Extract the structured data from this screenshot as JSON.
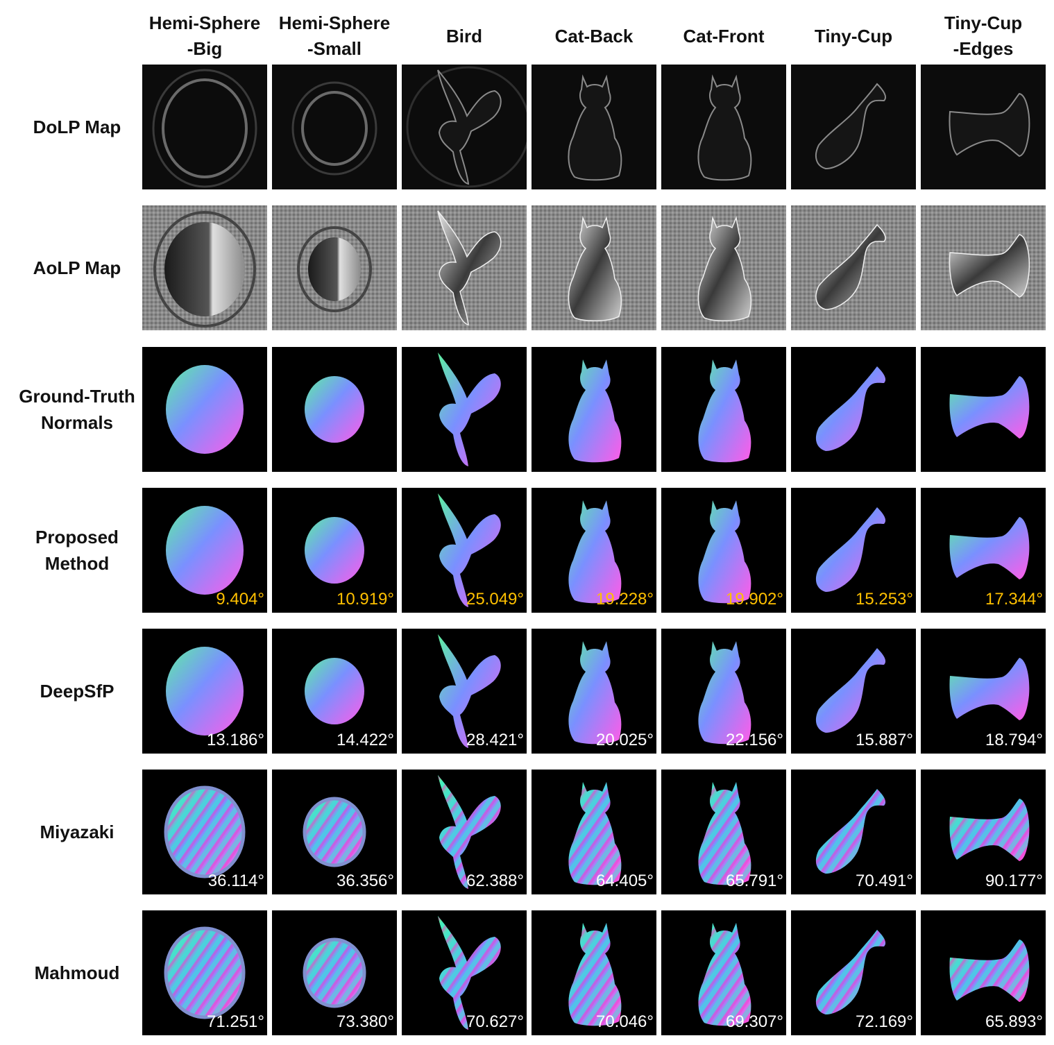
{
  "colors": {
    "highlight_error": "#FFC000",
    "normal_error": "#FFFFFF",
    "cell_background": "#000000"
  },
  "columns": [
    {
      "label": "Hemi-Sphere\n-Big",
      "shape": "sphere-big"
    },
    {
      "label": "Hemi-Sphere\n-Small",
      "shape": "sphere-small"
    },
    {
      "label": "Bird",
      "shape": "bird"
    },
    {
      "label": "Cat-Back",
      "shape": "cat-back"
    },
    {
      "label": "Cat-Front",
      "shape": "cat-front"
    },
    {
      "label": "Tiny-Cup",
      "shape": "tiny-cup"
    },
    {
      "label": "Tiny-Cup\n-Edges",
      "shape": "tiny-cup-edges"
    }
  ],
  "rows": [
    {
      "label": "DoLP Map",
      "style": "dolp",
      "errors": []
    },
    {
      "label": "AoLP Map",
      "style": "aolp",
      "errors": []
    },
    {
      "label": "Ground-Truth\nNormals",
      "style": "normal-smooth",
      "errors": []
    },
    {
      "label": "Proposed\nMethod",
      "style": "normal-smooth",
      "highlight": true,
      "errors": [
        "9.404°",
        "10.919°",
        "25.049°",
        "19.228°",
        "19.902°",
        "15.253°",
        "17.344°"
      ]
    },
    {
      "label": "DeepSfP",
      "style": "normal-smooth",
      "errors": [
        "13.186°",
        "14.422°",
        "28.421°",
        "20.025°",
        "22.156°",
        "15.887°",
        "18.794°"
      ]
    },
    {
      "label": "Miyazaki",
      "style": "normal-noisy",
      "errors": [
        "36.114°",
        "36.356°",
        "62.388°",
        "64.405°",
        "65.791°",
        "70.491°",
        "90.177°"
      ]
    },
    {
      "label": "Mahmoud",
      "style": "normal-noisy",
      "errors": [
        "71.251°",
        "73.380°",
        "70.627°",
        "70.046°",
        "69.307°",
        "72.169°",
        "65.893°"
      ]
    }
  ]
}
